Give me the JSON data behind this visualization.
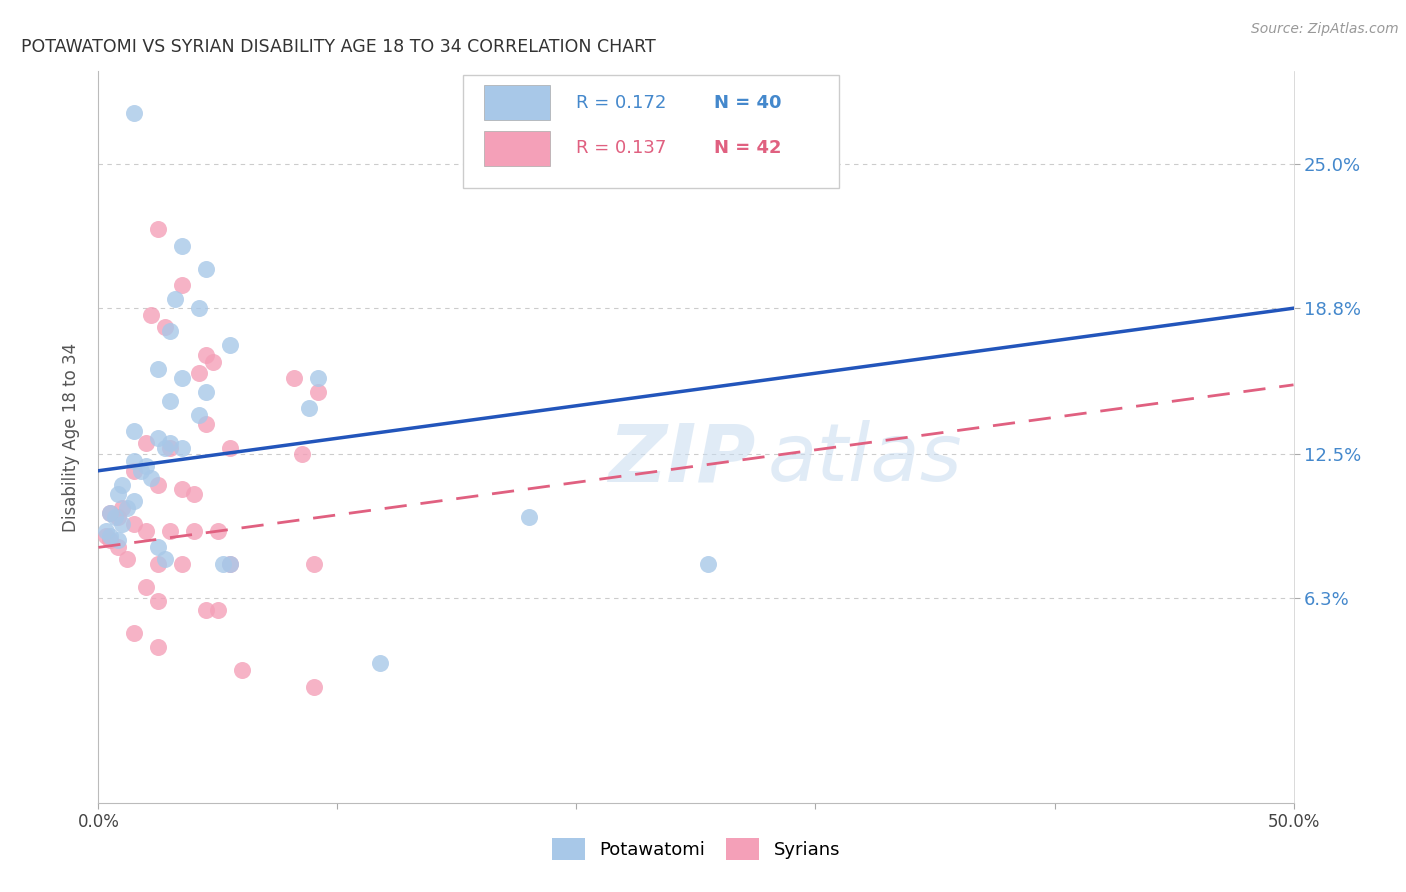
{
  "title": "POTAWATOMI VS SYRIAN DISABILITY AGE 18 TO 34 CORRELATION CHART",
  "source": "Source: ZipAtlas.com",
  "ylabel": "Disability Age 18 to 34",
  "ytick_labels": [
    "6.3%",
    "12.5%",
    "18.8%",
    "25.0%"
  ],
  "ytick_values": [
    6.3,
    12.5,
    18.8,
    25.0
  ],
  "xlim": [
    0.0,
    50.0
  ],
  "ylim": [
    -2.5,
    29.0
  ],
  "potawatomi_color": "#A8C8E8",
  "syrians_color": "#F4A0B8",
  "potawatomi_line_color": "#2255BB",
  "syrians_line_color": "#E06080",
  "right_tick_color": "#4488CC",
  "background_color": "#FFFFFF",
  "grid_color": "#CCCCCC",
  "watermark_color": "#C8DCF0",
  "legend_R_pot": "R = 0.172",
  "legend_N_pot": "N = 40",
  "legend_R_syr": "R = 0.137",
  "legend_N_syr": "N = 42",
  "legend_text_color": "#4488CC",
  "legend_bottom_pot": "Potawatomi",
  "legend_bottom_syr": "Syrians",
  "potawatomi_points": [
    [
      1.5,
      27.2
    ],
    [
      3.5,
      21.5
    ],
    [
      4.5,
      20.5
    ],
    [
      3.2,
      19.2
    ],
    [
      4.2,
      18.8
    ],
    [
      3.0,
      17.8
    ],
    [
      5.5,
      17.2
    ],
    [
      2.5,
      16.2
    ],
    [
      3.5,
      15.8
    ],
    [
      4.5,
      15.2
    ],
    [
      9.2,
      15.8
    ],
    [
      3.0,
      14.8
    ],
    [
      4.2,
      14.2
    ],
    [
      8.8,
      14.5
    ],
    [
      1.5,
      13.5
    ],
    [
      2.5,
      13.2
    ],
    [
      3.0,
      13.0
    ],
    [
      2.8,
      12.8
    ],
    [
      3.5,
      12.8
    ],
    [
      1.5,
      12.2
    ],
    [
      2.0,
      12.0
    ],
    [
      1.8,
      11.8
    ],
    [
      2.2,
      11.5
    ],
    [
      1.0,
      11.2
    ],
    [
      0.8,
      10.8
    ],
    [
      1.5,
      10.5
    ],
    [
      1.2,
      10.2
    ],
    [
      0.5,
      10.0
    ],
    [
      0.7,
      9.8
    ],
    [
      1.0,
      9.5
    ],
    [
      0.3,
      9.2
    ],
    [
      0.5,
      9.0
    ],
    [
      0.8,
      8.8
    ],
    [
      2.5,
      8.5
    ],
    [
      2.8,
      8.0
    ],
    [
      5.5,
      7.8
    ],
    [
      5.2,
      7.8
    ],
    [
      18.0,
      9.8
    ],
    [
      25.5,
      7.8
    ],
    [
      11.8,
      3.5
    ]
  ],
  "syrians_points": [
    [
      2.5,
      22.2
    ],
    [
      3.5,
      19.8
    ],
    [
      2.2,
      18.5
    ],
    [
      2.8,
      18.0
    ],
    [
      4.5,
      16.8
    ],
    [
      4.8,
      16.5
    ],
    [
      4.2,
      16.0
    ],
    [
      8.2,
      15.8
    ],
    [
      9.2,
      15.2
    ],
    [
      4.5,
      13.8
    ],
    [
      2.0,
      13.0
    ],
    [
      3.0,
      12.8
    ],
    [
      5.5,
      12.8
    ],
    [
      8.5,
      12.5
    ],
    [
      1.5,
      11.8
    ],
    [
      2.5,
      11.2
    ],
    [
      3.5,
      11.0
    ],
    [
      4.0,
      10.8
    ],
    [
      1.0,
      10.2
    ],
    [
      0.5,
      10.0
    ],
    [
      0.8,
      9.8
    ],
    [
      1.5,
      9.5
    ],
    [
      2.0,
      9.2
    ],
    [
      3.0,
      9.2
    ],
    [
      4.0,
      9.2
    ],
    [
      5.0,
      9.2
    ],
    [
      0.3,
      9.0
    ],
    [
      0.5,
      8.8
    ],
    [
      0.8,
      8.5
    ],
    [
      1.2,
      8.0
    ],
    [
      2.5,
      7.8
    ],
    [
      3.5,
      7.8
    ],
    [
      5.5,
      7.8
    ],
    [
      9.0,
      7.8
    ],
    [
      2.0,
      6.8
    ],
    [
      2.5,
      6.2
    ],
    [
      4.5,
      5.8
    ],
    [
      5.0,
      5.8
    ],
    [
      1.5,
      4.8
    ],
    [
      2.5,
      4.2
    ],
    [
      6.0,
      3.2
    ],
    [
      9.0,
      2.5
    ]
  ],
  "pot_trend_x0": 0.0,
  "pot_trend_y0": 11.8,
  "pot_trend_x1": 50.0,
  "pot_trend_y1": 18.8,
  "syr_trend_x0": 0.0,
  "syr_trend_y0": 8.5,
  "syr_trend_x1": 50.0,
  "syr_trend_y1": 15.5
}
